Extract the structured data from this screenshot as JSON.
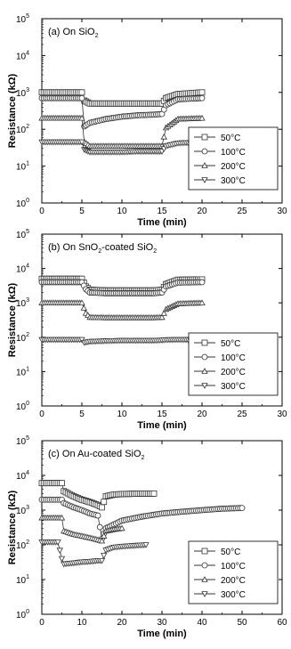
{
  "chart_data": [
    {
      "type": "line",
      "panel_label": "(a) On SiO",
      "panel_label_sub": "2",
      "xlabel": "Time (min)",
      "ylabel": "Resistance (kΩ)",
      "xlim": [
        0,
        30
      ],
      "xticks": [
        0,
        5,
        10,
        15,
        20,
        25,
        30
      ],
      "ylim_log10": [
        0,
        5
      ],
      "yticks": [
        "10",
        "10",
        "10",
        "10",
        "10",
        "10"
      ],
      "ytick_exp": [
        "0",
        "1",
        "2",
        "3",
        "4",
        "5"
      ],
      "legend": "bottom-right",
      "series": [
        {
          "name": "50°C",
          "marker": "square",
          "x": [
            0,
            5,
            5.3,
            6,
            8,
            10,
            12,
            14,
            15,
            15.5,
            17,
            20
          ],
          "y": [
            1000,
            1000,
            600,
            500,
            500,
            500,
            500,
            500,
            500,
            700,
            900,
            1000
          ]
        },
        {
          "name": "100°C",
          "marker": "circle",
          "x": [
            0,
            5,
            5.3,
            6,
            8,
            10,
            12,
            14,
            15,
            15.5,
            17,
            20
          ],
          "y": [
            700,
            700,
            120,
            150,
            190,
            220,
            240,
            250,
            260,
            450,
            650,
            700
          ]
        },
        {
          "name": "200°C",
          "marker": "triangle-up",
          "x": [
            0,
            5,
            5.3,
            6,
            8,
            10,
            12,
            14,
            15,
            15.5,
            17,
            20
          ],
          "y": [
            200,
            200,
            45,
            35,
            35,
            35,
            35,
            35,
            35,
            110,
            190,
            200
          ]
        },
        {
          "name": "300°C",
          "marker": "triangle-down",
          "x": [
            0,
            5,
            5.3,
            6,
            8,
            10,
            12,
            14,
            15,
            15.5,
            17,
            20
          ],
          "y": [
            45,
            45,
            28,
            24,
            24,
            24,
            25,
            25,
            25,
            35,
            42,
            45
          ]
        }
      ]
    },
    {
      "type": "line",
      "panel_label": "(b) On SnO",
      "panel_label_sub": "2",
      "panel_label_rest": "-coated SiO",
      "panel_label_sub2": "2",
      "xlabel": "Time (min)",
      "ylabel": "Resistance (kΩ)",
      "xlim": [
        0,
        30
      ],
      "xticks": [
        0,
        5,
        10,
        15,
        20,
        25,
        30
      ],
      "ylim_log10": [
        0,
        5
      ],
      "yticks": [
        "10",
        "10",
        "10",
        "10",
        "10",
        "10"
      ],
      "ytick_exp": [
        "0",
        "1",
        "2",
        "3",
        "4",
        "5"
      ],
      "legend": "bottom-right",
      "series": [
        {
          "name": "50°C",
          "marker": "square",
          "x": [
            0,
            5,
            5.5,
            6,
            8,
            10,
            12,
            14,
            15,
            15.5,
            17,
            20
          ],
          "y": [
            5000,
            5000,
            3000,
            2400,
            2300,
            2300,
            2300,
            2300,
            2400,
            3500,
            4700,
            4800
          ]
        },
        {
          "name": "100°C",
          "marker": "circle",
          "x": [
            0,
            5,
            5.5,
            6,
            8,
            10,
            12,
            14,
            15,
            15.5,
            17,
            20
          ],
          "y": [
            4000,
            4000,
            2500,
            2000,
            1900,
            1900,
            1900,
            1900,
            2000,
            3000,
            3900,
            4000
          ]
        },
        {
          "name": "200°C",
          "marker": "triangle-up",
          "x": [
            0,
            5,
            5.5,
            6,
            8,
            10,
            12,
            14,
            15,
            15.5,
            17,
            20
          ],
          "y": [
            1000,
            1000,
            500,
            380,
            370,
            370,
            370,
            370,
            380,
            650,
            950,
            1000
          ]
        },
        {
          "name": "300°C",
          "marker": "triangle-down",
          "x": [
            0,
            5,
            5.3,
            6,
            8,
            10,
            12,
            14,
            15,
            15.5,
            17,
            20
          ],
          "y": [
            85,
            85,
            70,
            75,
            78,
            80,
            80,
            80,
            82,
            84,
            85,
            85
          ]
        }
      ]
    },
    {
      "type": "line",
      "panel_label": "(c) On Au-coated SiO",
      "panel_label_sub": "2",
      "xlabel": "Time (min)",
      "ylabel": "Resistance (kΩ)",
      "xlim": [
        0,
        60
      ],
      "xticks": [
        0,
        10,
        20,
        30,
        40,
        50,
        60
      ],
      "ylim_log10": [
        0,
        5
      ],
      "yticks": [
        "10",
        "10",
        "10",
        "10",
        "10",
        "10"
      ],
      "ytick_exp": [
        "0",
        "1",
        "2",
        "3",
        "4",
        "5"
      ],
      "legend": "bottom-right",
      "series": [
        {
          "name": "50°C",
          "marker": "square",
          "x": [
            0,
            5,
            5.5,
            8,
            10,
            12,
            14,
            15,
            16,
            18,
            20,
            25,
            28
          ],
          "y": [
            6000,
            6000,
            3500,
            2500,
            2000,
            1700,
            1400,
            1200,
            2500,
            2800,
            2900,
            3000,
            3000
          ]
        },
        {
          "name": "100°C",
          "marker": "circle",
          "x": [
            0,
            5,
            5.5,
            8,
            10,
            12,
            14,
            15,
            16,
            20,
            25,
            30,
            35,
            40,
            45,
            50
          ],
          "y": [
            2000,
            2000,
            1600,
            1200,
            1000,
            800,
            700,
            150,
            300,
            500,
            650,
            800,
            900,
            1000,
            1100,
            1150
          ]
        },
        {
          "name": "200°C",
          "marker": "triangle-up",
          "x": [
            0,
            5,
            5.5,
            8,
            10,
            12,
            14,
            15,
            16,
            18,
            20
          ],
          "y": [
            600,
            600,
            250,
            200,
            180,
            160,
            140,
            130,
            250,
            280,
            300
          ]
        },
        {
          "name": "300°C",
          "marker": "triangle-down",
          "x": [
            0,
            4,
            5,
            5.5,
            8,
            10,
            12,
            14,
            15,
            16,
            18,
            20,
            23,
            26
          ],
          "y": [
            120,
            120,
            40,
            28,
            30,
            32,
            33,
            35,
            35,
            70,
            85,
            90,
            95,
            100
          ]
        }
      ]
    }
  ]
}
